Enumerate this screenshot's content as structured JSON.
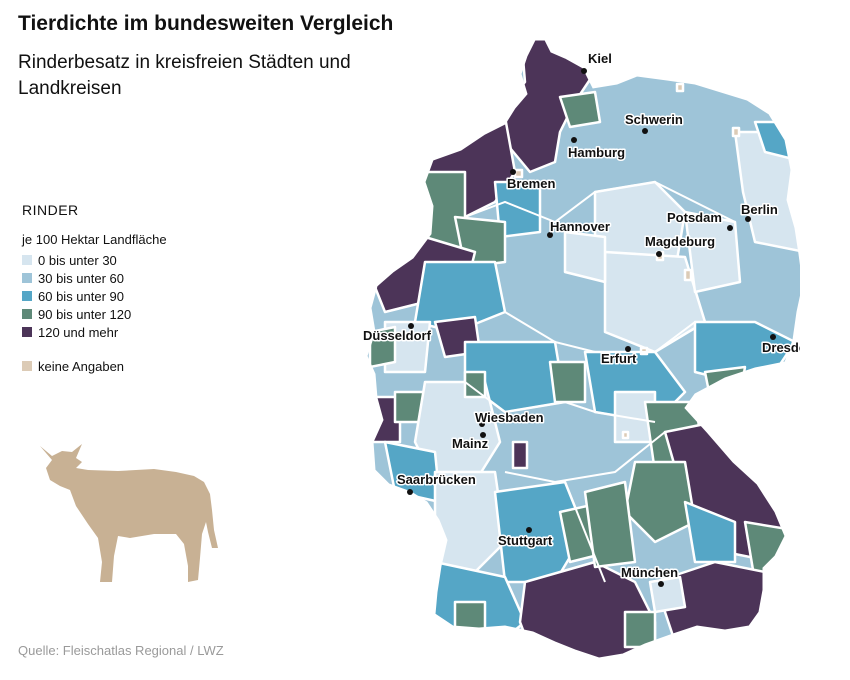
{
  "title": "Tierdichte im bundesweiten Vergleich",
  "subtitle": "Rinderbesatz in kreisfreien Städten und Landkreisen",
  "legend": {
    "heading": "RINDER",
    "unit": "je 100 Hektar Landfläche",
    "classes": [
      {
        "label": "0 bis unter 30",
        "color": "#d6e5ef"
      },
      {
        "label": "30 bis unter 60",
        "color": "#9ec4d8"
      },
      {
        "label": "60 bis unter 90",
        "color": "#55a6c6"
      },
      {
        "label": "90 bis unter 120",
        "color": "#5e8978"
      },
      {
        "label": "120 und mehr",
        "color": "#4c3458"
      }
    ],
    "no_data": {
      "label": "keine Angaben",
      "color": "#dccbb6"
    }
  },
  "icon": "cow-icon",
  "cow_color": "#c8b194",
  "source": "Quelle: Fleischatlas Regional / LWZ",
  "cities": [
    {
      "name": "Kiel"
    },
    {
      "name": "Schwerin"
    },
    {
      "name": "Hamburg"
    },
    {
      "name": "Bremen"
    },
    {
      "name": "Hannover"
    },
    {
      "name": "Potsdam"
    },
    {
      "name": "Berlin"
    },
    {
      "name": "Magdeburg"
    },
    {
      "name": "Düsseldorf"
    },
    {
      "name": "Erfurt"
    },
    {
      "name": "Dresden"
    },
    {
      "name": "Wiesbaden"
    },
    {
      "name": "Mainz"
    },
    {
      "name": "Saarbrücken"
    },
    {
      "name": "Stuttgart"
    },
    {
      "name": "München"
    }
  ]
}
